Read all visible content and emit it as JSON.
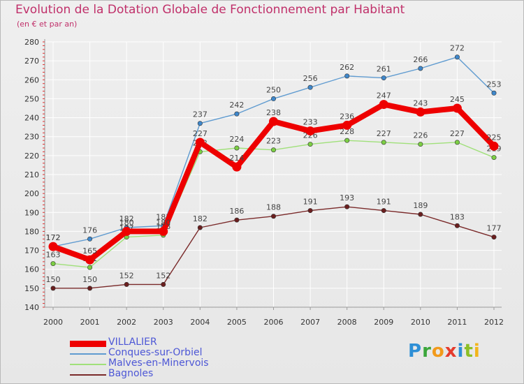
{
  "title": "Evolution de la Dotation Globale de Fonctionnement par Habitant",
  "subtitle": "(en € et par an)",
  "logo": "Proxiti",
  "colors": {
    "title": "#c0306a",
    "grid": "#ffffff",
    "axis": "#9a9a9a",
    "minor_tick": "#e03030"
  },
  "chart_data": {
    "type": "line",
    "title": "Evolution de la Dotation Globale de Fonctionnement par Habitant",
    "subtitle": "(en € et par an)",
    "xlabel": "",
    "ylabel": "",
    "categories": [
      "2000",
      "2001",
      "2002",
      "2003",
      "2004",
      "2005",
      "2006",
      "2007",
      "2008",
      "2009",
      "2010",
      "2011",
      "2012"
    ],
    "ylim": [
      140,
      280
    ],
    "yticks": [
      140,
      150,
      160,
      170,
      180,
      190,
      200,
      210,
      220,
      230,
      240,
      250,
      260,
      270,
      280
    ],
    "grid": true,
    "legend_position": "bottom-left",
    "series": [
      {
        "name": "Conques-sur-Orbiel",
        "color": "#5f9bd0",
        "marker": "#3f88cc",
        "emphasis": false,
        "values": [
          172,
          176,
          182,
          183,
          237,
          242,
          250,
          256,
          262,
          261,
          266,
          272,
          253
        ]
      },
      {
        "name": "Malves-en-Minervois",
        "color": "#a0e07a",
        "marker": "#7ccf44",
        "emphasis": false,
        "values": [
          163,
          161,
          177,
          178,
          222,
          224,
          223,
          226,
          228,
          227,
          226,
          227,
          219
        ]
      },
      {
        "name": "Bagnoles",
        "color": "#7a2a2a",
        "marker": "#6b1f1f",
        "emphasis": false,
        "values": [
          150,
          150,
          152,
          152,
          182,
          186,
          188,
          191,
          193,
          191,
          189,
          183,
          177
        ]
      },
      {
        "name": "VILLALIER",
        "color": "#ee0000",
        "marker": "#ee0000",
        "emphasis": true,
        "values": [
          172,
          165,
          180,
          180,
          227,
          214,
          238,
          233,
          236,
          247,
          243,
          245,
          225
        ]
      }
    ],
    "legend_order": [
      "VILLALIER",
      "Conques-sur-Orbiel",
      "Malves-en-Minervois",
      "Bagnoles"
    ]
  }
}
